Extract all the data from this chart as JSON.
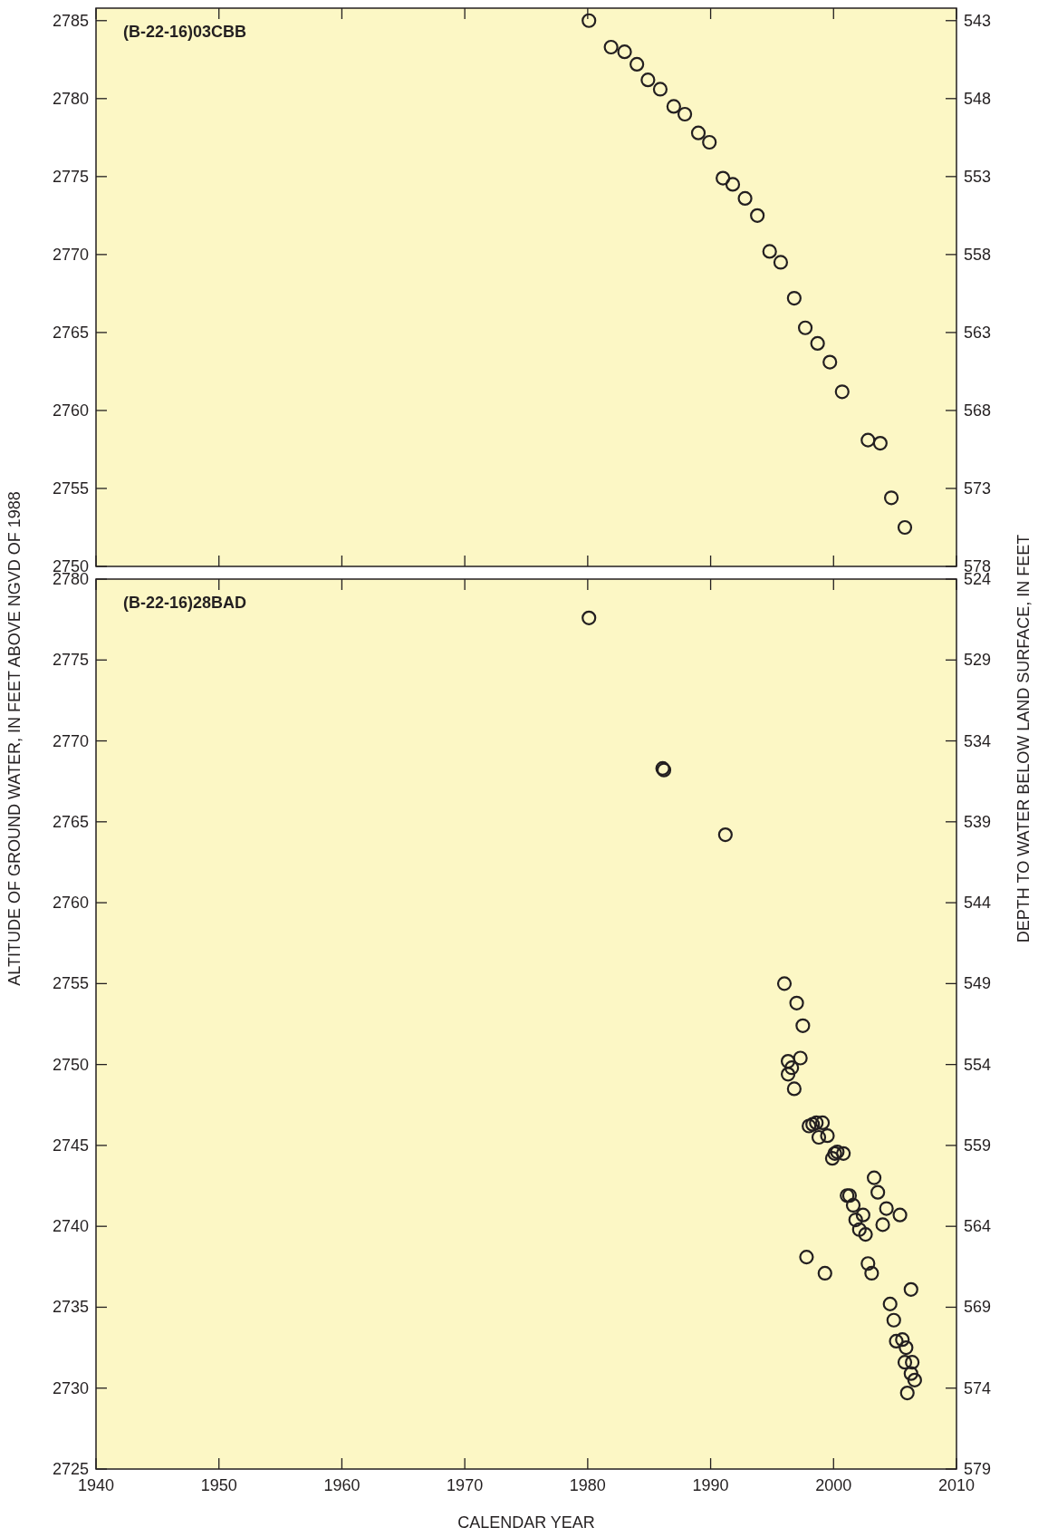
{
  "chart_data": [
    {
      "type": "scatter",
      "title": "(B-22-16)03CBB",
      "marker": "circle",
      "tick_labels": "y",
      "grid": false,
      "xlim": [
        1940,
        2010
      ],
      "xticks": [
        1940,
        1950,
        1960,
        1970,
        1980,
        1990,
        2000,
        2010
      ],
      "ylim": [
        2750,
        2785.8
      ],
      "yticks": [
        2750,
        2755,
        2760,
        2765,
        2770,
        2775,
        2780,
        2785
      ],
      "y2lim": [
        578,
        542.2
      ],
      "y2ticks": [
        578,
        573,
        568,
        563,
        558,
        553,
        548,
        543
      ],
      "series": [
        {
          "color": "#231f20",
          "x": [
            1980.1,
            1981.9,
            1983.0,
            1984.0,
            1984.9,
            1985.9,
            1987.0,
            1987.9,
            1989.0,
            1989.9,
            1991.0,
            1991.8,
            1992.8,
            1993.8,
            1994.8,
            1995.7,
            1996.8,
            1997.7,
            1998.7,
            1999.7,
            2000.7,
            2002.8,
            2003.8,
            2004.7,
            2005.8
          ],
          "values": [
            2785.0,
            2783.3,
            2783.0,
            2782.2,
            2781.2,
            2780.6,
            2779.5,
            2779.0,
            2777.8,
            2777.2,
            2774.9,
            2774.5,
            2773.6,
            2772.5,
            2770.2,
            2769.5,
            2767.2,
            2765.3,
            2764.3,
            2763.1,
            2761.2,
            2758.1,
            2757.9,
            2754.4,
            2752.5
          ]
        }
      ]
    },
    {
      "type": "scatter",
      "title": "(B-22-16)28BAD",
      "marker": "circle",
      "grid": false,
      "xlabel": "CALENDAR YEAR",
      "ylabel": "ALTITUDE OF GROUND WATER, IN FEET ABOVE NGVD OF 1988",
      "y2label": "DEPTH TO WATER BELOW LAND SURFACE, IN FEET",
      "xlim": [
        1940,
        2010
      ],
      "xticks": [
        1940,
        1950,
        1960,
        1970,
        1980,
        1990,
        2000,
        2010
      ],
      "ylim": [
        2725,
        2780
      ],
      "yticks": [
        2725,
        2730,
        2735,
        2740,
        2745,
        2750,
        2755,
        2760,
        2765,
        2770,
        2775,
        2780
      ],
      "y2lim": [
        579,
        524
      ],
      "y2ticks": [
        579,
        574,
        569,
        564,
        559,
        554,
        549,
        544,
        539,
        534,
        529,
        524
      ],
      "series": [
        {
          "color": "#231f20",
          "x": [
            1980.1,
            1986.1,
            1986.2,
            1991.2,
            1996.0,
            1997.0,
            1997.5,
            1997.3,
            1996.3,
            1996.6,
            1996.3,
            1996.8,
            1998.0,
            1998.3,
            1998.6,
            1999.1,
            1998.8,
            1999.5,
            1999.9,
            2000.1,
            2000.3,
            2000.8,
            2003.3,
            2003.6,
            2001.1,
            2001.3,
            2001.6,
            2004.3,
            2005.4,
            2002.4,
            2001.8,
            2004.0,
            2002.1,
            2002.6,
            1997.8,
            1999.3,
            2002.8,
            2003.1,
            2006.3,
            2004.6,
            2004.9,
            2005.1,
            2005.6,
            2005.9,
            2005.8,
            2006.4,
            2006.3,
            2006.6,
            2006.0
          ],
          "values": [
            2777.6,
            2768.3,
            2768.2,
            2764.2,
            2755.0,
            2753.8,
            2752.4,
            2750.4,
            2750.2,
            2749.8,
            2749.4,
            2748.5,
            2746.2,
            2746.3,
            2746.4,
            2746.4,
            2745.5,
            2745.6,
            2744.2,
            2744.5,
            2744.6,
            2744.5,
            2743.0,
            2742.1,
            2741.9,
            2741.9,
            2741.3,
            2741.1,
            2740.7,
            2740.7,
            2740.4,
            2740.1,
            2739.8,
            2739.5,
            2738.1,
            2737.1,
            2737.7,
            2737.1,
            2736.1,
            2735.2,
            2734.2,
            2732.9,
            2733.0,
            2732.5,
            2731.6,
            2731.6,
            2730.9,
            2730.5,
            2729.7
          ]
        }
      ]
    }
  ]
}
